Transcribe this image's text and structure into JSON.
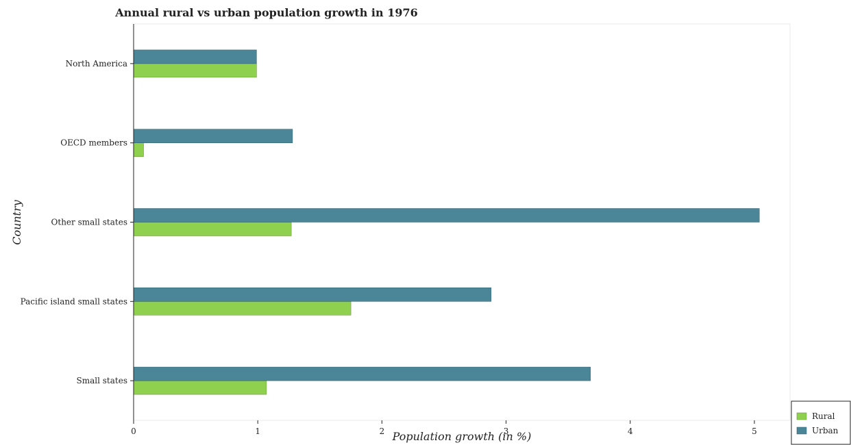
{
  "chart_data": {
    "type": "bar",
    "orientation": "horizontal",
    "title": "Annual rural vs urban population growth in 1976",
    "xlabel": "Population growth (in %)",
    "ylabel": "Country",
    "categories": [
      "North America",
      "OECD members",
      "Other small states",
      "Pacific island small states",
      "Small states"
    ],
    "series": [
      {
        "name": "Rural",
        "color": "#8fd14f",
        "values": [
          0.99,
          0.08,
          1.27,
          1.75,
          1.07
        ]
      },
      {
        "name": "Urban",
        "color": "#4a8698",
        "values": [
          0.99,
          1.28,
          5.04,
          2.88,
          3.68
        ]
      }
    ],
    "xlim": [
      0,
      5.4
    ],
    "xticks": [
      0,
      1,
      2,
      3,
      4,
      5
    ],
    "grid": false,
    "legend_position": "bottom-right"
  }
}
